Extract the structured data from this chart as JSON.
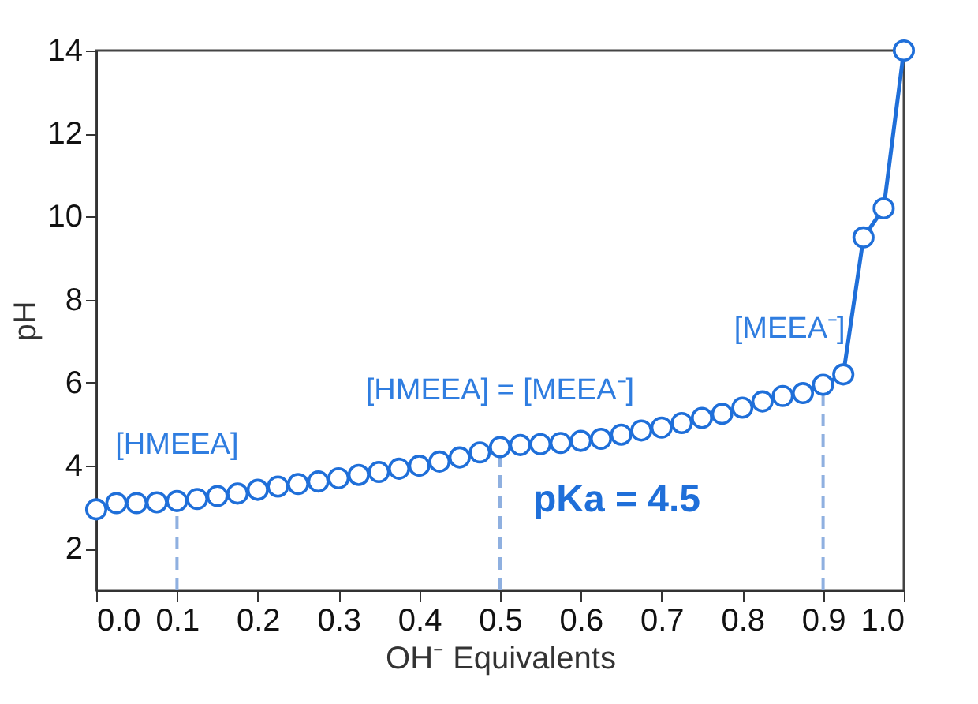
{
  "chart_data": {
    "type": "line",
    "xlabel": "OH⁻ Equivalents",
    "ylabel": "pH",
    "x": [
      0,
      0.025,
      0.05,
      0.075,
      0.1,
      0.125,
      0.15,
      0.175,
      0.2,
      0.225,
      0.25,
      0.275,
      0.3,
      0.325,
      0.35,
      0.375,
      0.4,
      0.425,
      0.45,
      0.475,
      0.5,
      0.525,
      0.55,
      0.575,
      0.6,
      0.625,
      0.65,
      0.675,
      0.7,
      0.725,
      0.75,
      0.775,
      0.8,
      0.825,
      0.85,
      0.875,
      0.9,
      0.925,
      0.95,
      0.975,
      1.0
    ],
    "series": [
      {
        "color": "#1f6fd9",
        "values": [
          2.95,
          3.1,
          3.1,
          3.12,
          3.15,
          3.2,
          3.27,
          3.33,
          3.42,
          3.5,
          3.56,
          3.62,
          3.7,
          3.78,
          3.85,
          3.93,
          4.0,
          4.1,
          4.2,
          4.32,
          4.45,
          4.5,
          4.52,
          4.55,
          4.6,
          4.65,
          4.75,
          4.85,
          4.92,
          5.03,
          5.15,
          5.25,
          5.4,
          5.55,
          5.68,
          5.75,
          5.95,
          6.2,
          9.5,
          10.2,
          14
        ]
      }
    ],
    "marker": "circle",
    "line_style": "solid",
    "grid": false,
    "xlim": [
      0,
      1.0
    ],
    "ylim": [
      1,
      14
    ],
    "xticks": [
      {
        "value": 0,
        "label": "0.0"
      },
      0.1,
      0.2,
      0.3,
      0.4,
      0.5,
      0.6,
      0.7,
      0.8,
      0.9,
      {
        "value": 1,
        "label": "1.0"
      }
    ],
    "yticks": [
      2,
      4,
      6,
      8,
      10,
      12,
      14
    ],
    "ref_lines": [
      {
        "axis": "x",
        "value": 0.1,
        "color": "#8fb0e0",
        "line_style": "dashed"
      },
      {
        "axis": "x",
        "value": 0.5,
        "color": "#8fb0e0",
        "line_style": "dashed"
      },
      {
        "axis": "x",
        "value": 0.9,
        "color": "#8fb0e0",
        "line_style": "dashed"
      }
    ],
    "annotations": [
      {
        "text": "[HMEEA]",
        "x": 0.1,
        "y": 3.15
      },
      {
        "text": "[HMEEA] = [MEEA⁻]",
        "x": 0.5,
        "y": 4.45
      },
      {
        "text": "[MEEA⁻]",
        "x": 0.9,
        "y": 5.95
      },
      "pKa = 4.5"
    ]
  }
}
